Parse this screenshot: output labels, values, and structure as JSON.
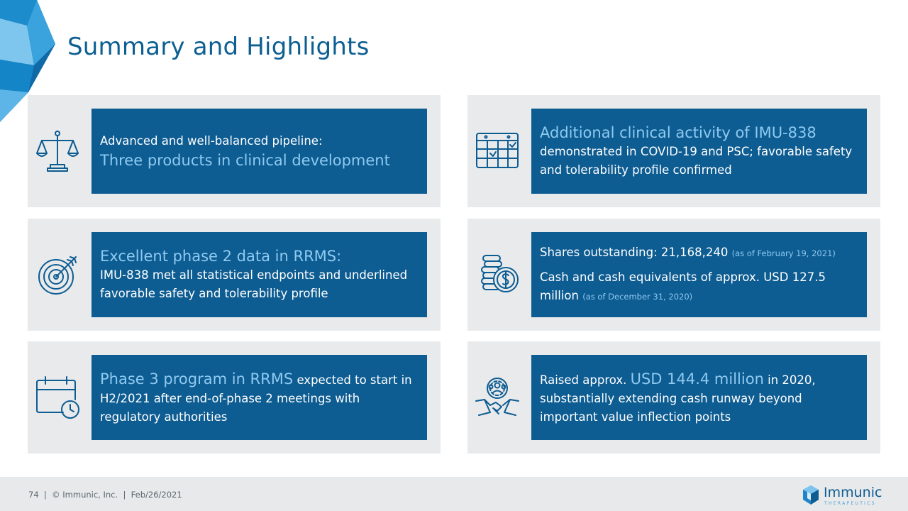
{
  "title": "Summary and Highlights",
  "colors": {
    "brand": "#0d5c92",
    "highlight": "#8fcaf0",
    "card_bg": "#e8eaeb"
  },
  "cards": [
    {
      "icon": "scales-icon",
      "line1": "Advanced and well-balanced pipeline:",
      "highlight": "Three products in clinical development"
    },
    {
      "icon": "calendar-check-icon",
      "highlight": "Additional clinical activity of IMU-838",
      "text": "demonstrated in COVID-19 and PSC; favorable safety and tolerability profile confirmed"
    },
    {
      "icon": "target-icon",
      "highlight": "Excellent phase 2 data in RRMS:",
      "text": "IMU-838 met all statistical endpoints and underlined favorable safety and tolerability profile"
    },
    {
      "icon": "coins-dollar-icon",
      "shares_text": "Shares outstanding: 21,168,240",
      "shares_note": "(as of February 19, 2021)",
      "cash_text": "Cash and cash equivalents of approx. USD 127.5 million",
      "cash_note": "(as of December 31, 2020)"
    },
    {
      "icon": "calendar-clock-icon",
      "highlight": "Phase 3 program in RRMS",
      "text_after": "expected to start in H2/2021 after end-of-phase 2 meetings with regulatory authorities"
    },
    {
      "icon": "gear-handshake-icon",
      "text_before": "Raised approx.",
      "highlight": "USD 144.4 million",
      "text_after": "in 2020, substantially extending cash runway beyond important value inflection points"
    }
  ],
  "footer": {
    "text": "74  |  © Immunic, Inc.  |  Feb/26/2021",
    "logo_name": "Immunic",
    "logo_sub": "THERAPEUTICS"
  }
}
